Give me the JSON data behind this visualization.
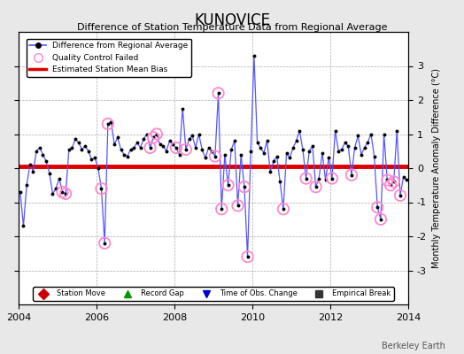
{
  "title": "KUNOVICE",
  "subtitle": "Difference of Station Temperature Data from Regional Average",
  "xlabel_years": [
    2004,
    2006,
    2008,
    2010,
    2012,
    2014
  ],
  "ylim": [
    -4,
    4
  ],
  "yticks": [
    -3,
    -2,
    -1,
    0,
    1,
    2,
    3
  ],
  "xlim_start": 2004.0,
  "xlim_end": 2014.0,
  "mean_bias": 0.05,
  "background_color": "#e8e8e8",
  "plot_bg_color": "#ffffff",
  "line_color": "#5555ff",
  "dot_color": "#000000",
  "bias_color": "#dd0000",
  "ylabel_right": "Monthly Temperature Anomaly Difference (°C)",
  "watermark": "Berkeley Earth",
  "data": [
    [
      2004.042,
      -0.7
    ],
    [
      2004.125,
      -1.7
    ],
    [
      2004.208,
      -0.5
    ],
    [
      2004.292,
      0.1
    ],
    [
      2004.375,
      -0.1
    ],
    [
      2004.458,
      0.5
    ],
    [
      2004.542,
      0.6
    ],
    [
      2004.625,
      0.4
    ],
    [
      2004.708,
      0.2
    ],
    [
      2004.792,
      -0.15
    ],
    [
      2004.875,
      -0.75
    ],
    [
      2004.958,
      -0.6
    ],
    [
      2005.042,
      -0.3
    ],
    [
      2005.125,
      -0.7
    ],
    [
      2005.208,
      -0.75
    ],
    [
      2005.292,
      0.55
    ],
    [
      2005.375,
      0.6
    ],
    [
      2005.458,
      0.85
    ],
    [
      2005.542,
      0.75
    ],
    [
      2005.625,
      0.55
    ],
    [
      2005.708,
      0.65
    ],
    [
      2005.792,
      0.5
    ],
    [
      2005.875,
      0.25
    ],
    [
      2005.958,
      0.3
    ],
    [
      2006.042,
      0.0
    ],
    [
      2006.125,
      -0.6
    ],
    [
      2006.208,
      -2.2
    ],
    [
      2006.292,
      1.3
    ],
    [
      2006.375,
      1.35
    ],
    [
      2006.458,
      0.7
    ],
    [
      2006.542,
      0.9
    ],
    [
      2006.625,
      0.55
    ],
    [
      2006.708,
      0.4
    ],
    [
      2006.792,
      0.35
    ],
    [
      2006.875,
      0.55
    ],
    [
      2006.958,
      0.6
    ],
    [
      2007.042,
      0.75
    ],
    [
      2007.125,
      0.6
    ],
    [
      2007.208,
      0.85
    ],
    [
      2007.292,
      1.0
    ],
    [
      2007.375,
      0.6
    ],
    [
      2007.458,
      0.9
    ],
    [
      2007.542,
      1.0
    ],
    [
      2007.625,
      0.7
    ],
    [
      2007.708,
      0.65
    ],
    [
      2007.792,
      0.5
    ],
    [
      2007.875,
      0.8
    ],
    [
      2007.958,
      0.7
    ],
    [
      2008.042,
      0.6
    ],
    [
      2008.125,
      0.4
    ],
    [
      2008.208,
      1.75
    ],
    [
      2008.292,
      0.55
    ],
    [
      2008.375,
      0.85
    ],
    [
      2008.458,
      0.95
    ],
    [
      2008.542,
      0.6
    ],
    [
      2008.625,
      1.0
    ],
    [
      2008.708,
      0.55
    ],
    [
      2008.792,
      0.3
    ],
    [
      2008.875,
      0.6
    ],
    [
      2008.958,
      0.5
    ],
    [
      2009.042,
      0.35
    ],
    [
      2009.125,
      2.2
    ],
    [
      2009.208,
      -1.2
    ],
    [
      2009.292,
      0.4
    ],
    [
      2009.375,
      -0.5
    ],
    [
      2009.458,
      0.55
    ],
    [
      2009.542,
      0.8
    ],
    [
      2009.625,
      -1.1
    ],
    [
      2009.708,
      0.4
    ],
    [
      2009.792,
      -0.55
    ],
    [
      2009.875,
      -2.6
    ],
    [
      2009.958,
      0.5
    ],
    [
      2010.042,
      3.3
    ],
    [
      2010.125,
      0.75
    ],
    [
      2010.208,
      0.6
    ],
    [
      2010.292,
      0.45
    ],
    [
      2010.375,
      0.8
    ],
    [
      2010.458,
      -0.1
    ],
    [
      2010.542,
      0.2
    ],
    [
      2010.625,
      0.35
    ],
    [
      2010.708,
      -0.4
    ],
    [
      2010.792,
      -1.2
    ],
    [
      2010.875,
      0.45
    ],
    [
      2010.958,
      0.3
    ],
    [
      2011.042,
      0.6
    ],
    [
      2011.125,
      0.8
    ],
    [
      2011.208,
      1.1
    ],
    [
      2011.292,
      0.55
    ],
    [
      2011.375,
      -0.3
    ],
    [
      2011.458,
      0.5
    ],
    [
      2011.542,
      0.65
    ],
    [
      2011.625,
      -0.55
    ],
    [
      2011.708,
      -0.3
    ],
    [
      2011.792,
      0.45
    ],
    [
      2011.875,
      -0.35
    ],
    [
      2011.958,
      0.3
    ],
    [
      2012.042,
      -0.3
    ],
    [
      2012.125,
      1.1
    ],
    [
      2012.208,
      0.5
    ],
    [
      2012.292,
      0.55
    ],
    [
      2012.375,
      0.75
    ],
    [
      2012.458,
      0.65
    ],
    [
      2012.542,
      -0.2
    ],
    [
      2012.625,
      0.6
    ],
    [
      2012.708,
      0.95
    ],
    [
      2012.792,
      0.4
    ],
    [
      2012.875,
      0.6
    ],
    [
      2012.958,
      0.75
    ],
    [
      2013.042,
      1.0
    ],
    [
      2013.125,
      0.35
    ],
    [
      2013.208,
      -1.15
    ],
    [
      2013.292,
      -1.5
    ],
    [
      2013.375,
      1.0
    ],
    [
      2013.458,
      -0.35
    ],
    [
      2013.542,
      -0.5
    ],
    [
      2013.625,
      -0.4
    ],
    [
      2013.708,
      1.1
    ],
    [
      2013.792,
      -0.8
    ],
    [
      2013.875,
      -0.25
    ],
    [
      2013.958,
      -0.35
    ]
  ],
  "qc_failed_x": [
    2005.125,
    2005.208,
    2006.125,
    2006.208,
    2006.292,
    2007.375,
    2007.458,
    2007.542,
    2008.042,
    2008.292,
    2009.042,
    2009.125,
    2009.208,
    2009.375,
    2009.625,
    2009.792,
    2009.875,
    2010.792,
    2011.375,
    2011.625,
    2012.042,
    2012.542,
    2013.208,
    2013.292,
    2013.458,
    2013.542,
    2013.625,
    2013.792
  ],
  "qc_failed_y": [
    -0.7,
    -0.75,
    -0.6,
    -2.2,
    1.3,
    0.6,
    0.9,
    1.0,
    0.6,
    0.55,
    0.35,
    2.2,
    -1.2,
    -0.5,
    -1.1,
    -0.55,
    -2.6,
    -1.2,
    -0.3,
    -0.55,
    -0.3,
    -0.2,
    -1.15,
    -1.5,
    -0.35,
    -0.5,
    -0.4,
    -0.8
  ],
  "bottom_legend": [
    {
      "label": "Station Move",
      "marker": "D",
      "color": "#cc0000"
    },
    {
      "label": "Record Gap",
      "marker": "^",
      "color": "#009900"
    },
    {
      "label": "Time of Obs. Change",
      "marker": "v",
      "color": "#0000cc"
    },
    {
      "label": "Empirical Break",
      "marker": "s",
      "color": "#333333"
    }
  ]
}
